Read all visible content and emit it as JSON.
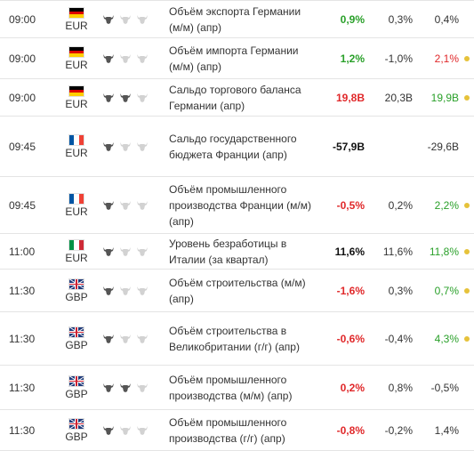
{
  "colors": {
    "positive": "#2aa02a",
    "negative": "#e0282a",
    "neutral": "#111111",
    "revised_dot": "#e6c23a",
    "bull_active": "#555555",
    "bull_inactive": "#d2d2d2"
  },
  "rows": [
    {
      "time": "09:00",
      "flag": "de",
      "currency": "EUR",
      "importance": 1,
      "event": "Объём экспорта Германии (м/м) (апр)",
      "actual": "0,9%",
      "actual_color": "green",
      "forecast": "0,3%",
      "previous": "0,4%",
      "previous_color": "gray",
      "revised": false
    },
    {
      "time": "09:00",
      "flag": "de",
      "currency": "EUR",
      "importance": 1,
      "event": "Объём импорта Германии (м/м) (апр)",
      "actual": "1,2%",
      "actual_color": "green",
      "forecast": "-1,0%",
      "previous": "2,1%",
      "previous_color": "red",
      "revised": true
    },
    {
      "time": "09:00",
      "flag": "de",
      "currency": "EUR",
      "importance": 2,
      "event": "Сальдо торгового баланса Германии (апр)",
      "actual": "19,8B",
      "actual_color": "red",
      "forecast": "20,3B",
      "previous": "19,9B",
      "previous_color": "green",
      "revised": true
    },
    {
      "time": "09:45",
      "flag": "fr",
      "currency": "EUR",
      "importance": 1,
      "event": "Сальдо государственного бюджета Франции (апр)",
      "actual": "-57,9B",
      "actual_color": "black",
      "forecast": "",
      "previous": "-29,6B",
      "previous_color": "gray",
      "revised": false
    },
    {
      "time": "09:45",
      "flag": "fr",
      "currency": "EUR",
      "importance": 1,
      "event": "Объём промышленного производства Франции (м/м) (апр)",
      "actual": "-0,5%",
      "actual_color": "red",
      "forecast": "0,2%",
      "previous": "2,2%",
      "previous_color": "green",
      "revised": true
    },
    {
      "time": "11:00",
      "flag": "it",
      "currency": "EUR",
      "importance": 1,
      "event": "Уровень безработицы в Италии (за квартал)",
      "actual": "11,6%",
      "actual_color": "black",
      "forecast": "11,6%",
      "previous": "11,8%",
      "previous_color": "green",
      "revised": true
    },
    {
      "time": "11:30",
      "flag": "gb",
      "currency": "GBP",
      "importance": 1,
      "event": "Объём строительства (м/м) (апр)",
      "actual": "-1,6%",
      "actual_color": "red",
      "forecast": "0,3%",
      "previous": "0,7%",
      "previous_color": "green",
      "revised": true
    },
    {
      "time": "11:30",
      "flag": "gb",
      "currency": "GBP",
      "importance": 1,
      "event": "Объём строительства в Великобритании (г/г) (апр)",
      "actual": "-0,6%",
      "actual_color": "red",
      "forecast": "-0,4%",
      "previous": "4,3%",
      "previous_color": "green",
      "revised": true
    },
    {
      "time": "11:30",
      "flag": "gb",
      "currency": "GBP",
      "importance": 2,
      "event": "Объём промышленного производства (м/м) (апр)",
      "actual": "0,2%",
      "actual_color": "red",
      "forecast": "0,8%",
      "previous": "-0,5%",
      "previous_color": "gray",
      "revised": false
    },
    {
      "time": "11:30",
      "flag": "gb",
      "currency": "GBP",
      "importance": 1,
      "event": "Объём промышленного производства (г/г) (апр)",
      "actual": "-0,8%",
      "actual_color": "red",
      "forecast": "-0,2%",
      "previous": "1,4%",
      "previous_color": "gray",
      "revised": false
    }
  ]
}
